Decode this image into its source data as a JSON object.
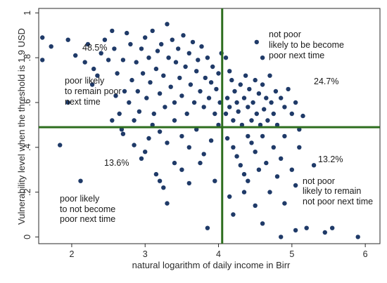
{
  "chart_data": {
    "type": "scatter",
    "title": "",
    "xlabel": "natural logarithm of daily income in Birr",
    "ylabel": "Vulnerability level when the threshold is 1.9 USD",
    "xlim": [
      1.55,
      6.2
    ],
    "ylim": [
      -0.03,
      1.02
    ],
    "x_ticks": [
      "2",
      "3",
      "4",
      "5",
      "6"
    ],
    "y_ticks": [
      "0",
      ".2",
      ".4",
      ".6",
      ".8",
      "1"
    ],
    "grid": false,
    "reference_lines": {
      "vertical_x": 4.05,
      "horizontal_y": 0.49
    },
    "colors": {
      "points": "#1f3a68",
      "reference_lines": "#2d6e1e",
      "frame": "#2a2a2a"
    },
    "quadrant_percentages": [
      "48.5%",
      "24.7%",
      "13.6%",
      "13.2%"
    ],
    "annotations": {
      "poor_likely_remain": [
        "poor likely",
        "to remain poor",
        "next time"
      ],
      "not_poor_become_poor": [
        "not poor",
        "likely to be become",
        "poor next time"
      ],
      "poor_likely_not_become": [
        "poor likely",
        "to not become",
        "poor next time"
      ],
      "not_poor_remain": [
        "not poor",
        "likely to remain",
        "not poor next time"
      ]
    },
    "points": [
      [
        1.6,
        0.89
      ],
      [
        1.6,
        0.79
      ],
      [
        1.72,
        0.85
      ],
      [
        1.84,
        0.41
      ],
      [
        1.95,
        0.6
      ],
      [
        2.12,
        0.25
      ],
      [
        1.95,
        0.88
      ],
      [
        2.05,
        0.81
      ],
      [
        2.18,
        0.78
      ],
      [
        2.22,
        0.86
      ],
      [
        2.28,
        0.68
      ],
      [
        2.3,
        0.75
      ],
      [
        2.35,
        0.72
      ],
      [
        2.4,
        0.82
      ],
      [
        2.45,
        0.88
      ],
      [
        2.5,
        0.79
      ],
      [
        2.55,
        0.92
      ],
      [
        2.58,
        0.84
      ],
      [
        2.6,
        0.63
      ],
      [
        2.62,
        0.73
      ],
      [
        2.65,
        0.55
      ],
      [
        2.68,
        0.48
      ],
      [
        2.7,
        0.79
      ],
      [
        2.72,
        0.65
      ],
      [
        2.75,
        0.91
      ],
      [
        2.78,
        0.6
      ],
      [
        2.8,
        0.86
      ],
      [
        2.82,
        0.7
      ],
      [
        2.85,
        0.52
      ],
      [
        2.88,
        0.78
      ],
      [
        2.9,
        0.65
      ],
      [
        2.92,
        0.56
      ],
      [
        2.95,
        0.84
      ],
      [
        2.97,
        0.73
      ],
      [
        3.0,
        0.89
      ],
      [
        3.02,
        0.62
      ],
      [
        3.05,
        0.8
      ],
      [
        3.07,
        0.69
      ],
      [
        3.1,
        0.92
      ],
      [
        3.12,
        0.55
      ],
      [
        3.15,
        0.75
      ],
      [
        3.17,
        0.83
      ],
      [
        3.2,
        0.64
      ],
      [
        3.22,
        0.86
      ],
      [
        3.25,
        0.72
      ],
      [
        3.27,
        0.58
      ],
      [
        3.3,
        0.95
      ],
      [
        3.32,
        0.8
      ],
      [
        3.35,
        0.67
      ],
      [
        3.37,
        0.88
      ],
      [
        3.4,
        0.6
      ],
      [
        3.42,
        0.78
      ],
      [
        3.45,
        0.84
      ],
      [
        3.47,
        0.71
      ],
      [
        3.5,
        0.63
      ],
      [
        3.52,
        0.9
      ],
      [
        3.55,
        0.76
      ],
      [
        3.57,
        0.55
      ],
      [
        3.6,
        0.82
      ],
      [
        3.62,
        0.68
      ],
      [
        3.65,
        0.87
      ],
      [
        3.67,
        0.6
      ],
      [
        3.7,
        0.74
      ],
      [
        3.72,
        0.79
      ],
      [
        3.75,
        0.65
      ],
      [
        3.77,
        0.85
      ],
      [
        3.8,
        0.58
      ],
      [
        3.82,
        0.71
      ],
      [
        3.85,
        0.8
      ],
      [
        3.87,
        0.62
      ],
      [
        3.9,
        0.69
      ],
      [
        3.92,
        0.76
      ],
      [
        3.95,
        0.55
      ],
      [
        3.97,
        0.66
      ],
      [
        4.0,
        0.73
      ],
      [
        4.02,
        0.6
      ],
      [
        4.04,
        0.82
      ],
      [
        3.05,
        0.44
      ],
      [
        3.1,
        0.5
      ],
      [
        3.2,
        0.47
      ],
      [
        3.3,
        0.42
      ],
      [
        3.4,
        0.52
      ],
      [
        3.5,
        0.45
      ],
      [
        3.6,
        0.4
      ],
      [
        3.7,
        0.48
      ],
      [
        3.8,
        0.37
      ],
      [
        3.9,
        0.43
      ],
      [
        4.0,
        0.5
      ],
      [
        2.55,
        0.52
      ],
      [
        2.7,
        0.46
      ],
      [
        2.85,
        0.41
      ],
      [
        2.95,
        0.35
      ],
      [
        3.0,
        0.38
      ],
      [
        3.15,
        0.28
      ],
      [
        3.2,
        0.25
      ],
      [
        3.25,
        0.22
      ],
      [
        3.3,
        0.15
      ],
      [
        3.4,
        0.33
      ],
      [
        3.5,
        0.3
      ],
      [
        3.6,
        0.24
      ],
      [
        3.75,
        0.33
      ],
      [
        3.85,
        0.04
      ],
      [
        3.95,
        0.25
      ],
      [
        4.1,
        0.55
      ],
      [
        4.12,
        0.62
      ],
      [
        4.15,
        0.58
      ],
      [
        4.18,
        0.7
      ],
      [
        4.2,
        0.52
      ],
      [
        4.22,
        0.65
      ],
      [
        4.25,
        0.6
      ],
      [
        4.27,
        0.56
      ],
      [
        4.3,
        0.68
      ],
      [
        4.32,
        0.5
      ],
      [
        4.35,
        0.62
      ],
      [
        4.37,
        0.72
      ],
      [
        4.4,
        0.58
      ],
      [
        4.42,
        0.66
      ],
      [
        4.45,
        0.52
      ],
      [
        4.47,
        0.6
      ],
      [
        4.5,
        0.7
      ],
      [
        4.52,
        0.55
      ],
      [
        4.55,
        0.64
      ],
      [
        4.57,
        0.5
      ],
      [
        4.6,
        0.68
      ],
      [
        4.62,
        0.57
      ],
      [
        4.65,
        0.62
      ],
      [
        4.67,
        0.52
      ],
      [
        4.7,
        0.72
      ],
      [
        4.72,
        0.6
      ],
      [
        4.75,
        0.55
      ],
      [
        4.78,
        0.65
      ],
      [
        4.8,
        0.5
      ],
      [
        4.85,
        0.62
      ],
      [
        4.9,
        0.58
      ],
      [
        4.95,
        0.66
      ],
      [
        5.0,
        0.55
      ],
      [
        5.05,
        0.6
      ],
      [
        5.15,
        0.54
      ],
      [
        4.52,
        0.87
      ],
      [
        4.6,
        0.8
      ],
      [
        4.1,
        0.8
      ],
      [
        4.15,
        0.74
      ],
      [
        4.12,
        0.44
      ],
      [
        4.2,
        0.4
      ],
      [
        4.25,
        0.36
      ],
      [
        4.3,
        0.32
      ],
      [
        4.35,
        0.28
      ],
      [
        4.4,
        0.25
      ],
      [
        4.45,
        0.42
      ],
      [
        4.5,
        0.38
      ],
      [
        4.55,
        0.3
      ],
      [
        4.6,
        0.45
      ],
      [
        4.65,
        0.33
      ],
      [
        4.7,
        0.2
      ],
      [
        4.75,
        0.4
      ],
      [
        4.8,
        0.27
      ],
      [
        4.85,
        0.35
      ],
      [
        4.9,
        0.15
      ],
      [
        5.0,
        0.3
      ],
      [
        5.05,
        0.23
      ],
      [
        5.1,
        0.4
      ],
      [
        5.2,
        0.04
      ],
      [
        5.3,
        0.32
      ],
      [
        5.45,
        0.02
      ],
      [
        5.55,
        0.04
      ],
      [
        4.85,
        0.0
      ],
      [
        5.05,
        0.03
      ],
      [
        5.9,
        0.0
      ],
      [
        4.15,
        0.18
      ],
      [
        4.2,
        0.1
      ],
      [
        4.35,
        0.2
      ],
      [
        4.5,
        0.14
      ],
      [
        4.6,
        0.06
      ],
      [
        4.4,
        0.45
      ],
      [
        4.9,
        0.45
      ],
      [
        5.1,
        0.48
      ]
    ]
  }
}
